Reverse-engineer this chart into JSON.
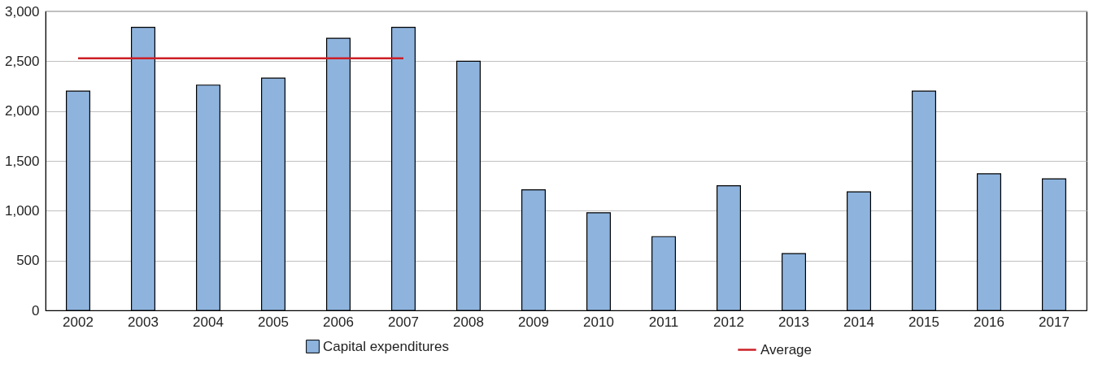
{
  "chart_data": {
    "type": "bar",
    "categories": [
      "2002",
      "2003",
      "2004",
      "2005",
      "2006",
      "2007",
      "2008",
      "2009",
      "2010",
      "2011",
      "2012",
      "2013",
      "2014",
      "2015",
      "2016",
      "2017"
    ],
    "series": [
      {
        "name": "Capital expenditures",
        "color": "#8eb4de",
        "values": [
          2200,
          2840,
          2260,
          2330,
          2730,
          2840,
          2500,
          1210,
          980,
          740,
          1250,
          570,
          1190,
          2200,
          1370,
          1320
        ]
      },
      {
        "name": "Average",
        "type": "line",
        "color": "#cc1f26",
        "values": [
          2530,
          2530,
          2530,
          2530,
          2530,
          2530,
          null,
          null,
          null,
          null,
          null,
          null,
          null,
          null,
          null,
          null
        ]
      }
    ],
    "ylim": [
      0,
      3000
    ],
    "yticks": [
      0,
      500,
      {
        "value": 1000,
        "label": "1,000"
      },
      {
        "value": 1500,
        "label": "1,500"
      },
      {
        "value": 2000,
        "label": "2,000"
      },
      {
        "value": 2500,
        "label": "2,500"
      },
      {
        "value": 3000,
        "label": "3,000"
      }
    ],
    "grid": "y",
    "legend": "bottom"
  }
}
